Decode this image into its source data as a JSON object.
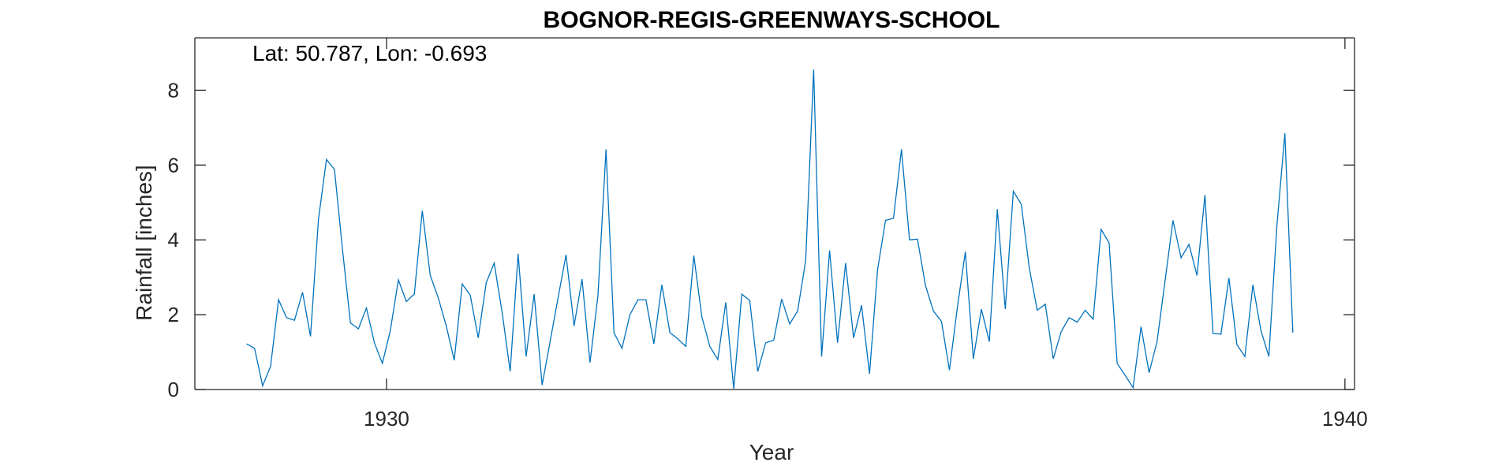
{
  "chart_data": {
    "type": "line",
    "title": "BOGNOR-REGIS-GREENWAYS-SCHOOL",
    "xlabel": "Year",
    "ylabel": "Rainfall [inches]",
    "annotation": "Lat: 50.787, Lon: -0.693",
    "xlim": [
      1928.0,
      1940.1
    ],
    "ylim": [
      0,
      9.4
    ],
    "xticks": [
      1930,
      1940
    ],
    "yticks": [
      0,
      2,
      4,
      6,
      8
    ],
    "grid": false,
    "series": [
      {
        "color": "#0072bd",
        "x_start": 1928.54,
        "x_step": 0.08333,
        "values": [
          1.22,
          1.1,
          0.1,
          0.62,
          2.4,
          1.92,
          1.85,
          2.6,
          1.42,
          4.55,
          6.15,
          5.88,
          3.75,
          1.78,
          1.62,
          2.18,
          1.25,
          0.7,
          1.58,
          2.93,
          2.35,
          2.55,
          4.78,
          3.05,
          2.45,
          1.7,
          0.78,
          2.82,
          2.52,
          1.38,
          2.85,
          3.38,
          2.05,
          0.48,
          3.63,
          0.88,
          2.55,
          0.12,
          1.28,
          2.45,
          3.6,
          1.7,
          2.95,
          0.72,
          2.52,
          6.42,
          1.52,
          1.1,
          2.0,
          2.4,
          2.4,
          1.22,
          2.8,
          1.52,
          1.35,
          1.15,
          3.58,
          1.95,
          1.15,
          0.8,
          2.33,
          0.02,
          2.55,
          2.38,
          0.48,
          1.25,
          1.32,
          2.42,
          1.75,
          2.1,
          3.45,
          8.55,
          0.88,
          3.72,
          1.25,
          3.38,
          1.38,
          2.25,
          0.42,
          3.2,
          4.52,
          4.58,
          6.42,
          4.0,
          4.02,
          2.78,
          2.1,
          1.82,
          0.52,
          2.2,
          3.68,
          0.82,
          2.15,
          1.28,
          4.82,
          2.15,
          5.3,
          4.95,
          3.25,
          2.12,
          2.28,
          0.82,
          1.55,
          1.92,
          1.8,
          2.12,
          1.88,
          4.28,
          3.92,
          0.7,
          0.38,
          0.05,
          1.68,
          0.45,
          1.28,
          2.9,
          4.52,
          3.52,
          3.88,
          3.05,
          5.2,
          1.5,
          1.48,
          2.98,
          1.2,
          0.88,
          2.8,
          1.58,
          0.88,
          4.35,
          6.85,
          1.52
        ]
      }
    ]
  }
}
